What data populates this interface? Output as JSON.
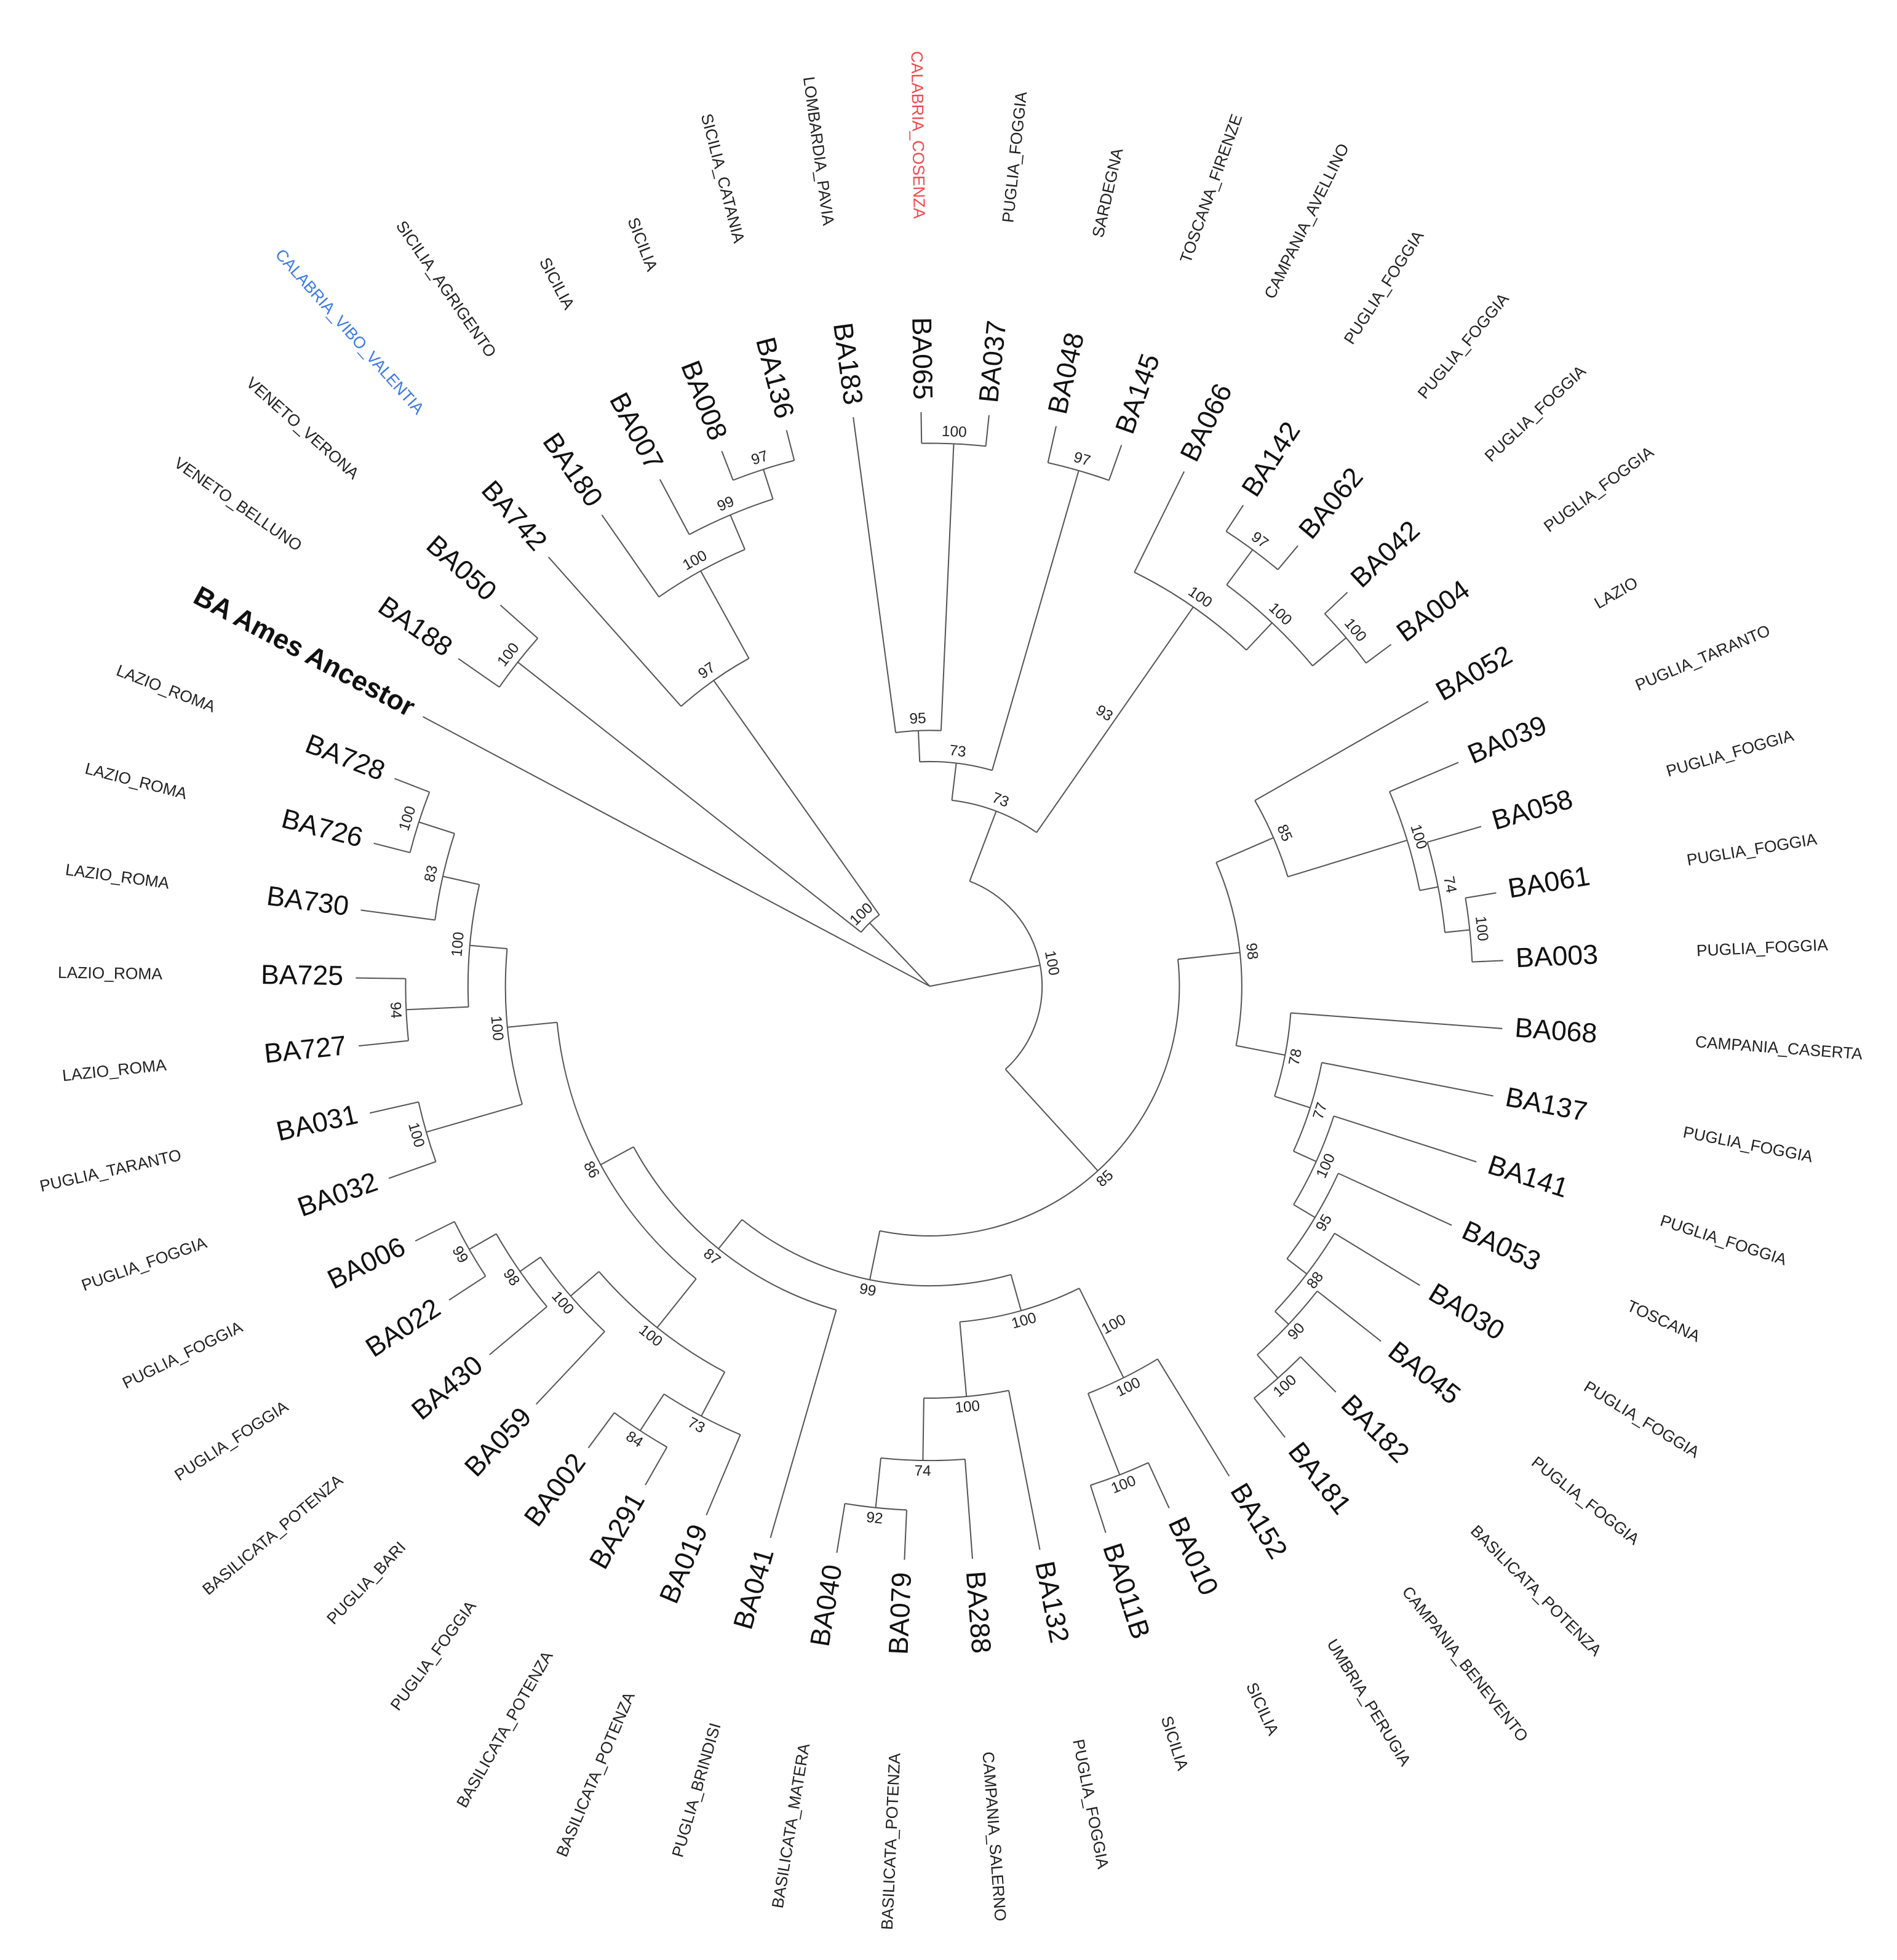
{
  "leaves": [
    {
      "id": "BA Ames Ancestor",
      "bold": true
    },
    {
      "id": "BA188",
      "region": "VENETO_BELLUNO"
    },
    {
      "id": "BA050",
      "region": "VENETO_VERONA"
    },
    {
      "id": "BA742",
      "region": "CALABRIA_VIBO_VALENTIA",
      "region_color": "#3b78e7"
    },
    {
      "id": "BA180",
      "region": "SICILIA_AGRIGENTO"
    },
    {
      "id": "BA007",
      "region": "SICILIA"
    },
    {
      "id": "BA008",
      "region": "SICILIA"
    },
    {
      "id": "BA136",
      "region": "SICILIA_CATANIA"
    },
    {
      "id": "BA183",
      "region": "LOMBARDIA_PAVIA"
    },
    {
      "id": "BA065",
      "region": "CALABRIA_COSENZA",
      "region_color": "#f0484a"
    },
    {
      "id": "BA037",
      "region": "PUGLIA_FOGGIA"
    },
    {
      "id": "BA048",
      "region": "SARDEGNA"
    },
    {
      "id": "BA145",
      "region": "TOSCANA_FIRENZE"
    },
    {
      "id": "BA066",
      "region": "CAMPANIA_AVELLINO"
    },
    {
      "id": "BA142",
      "region": "PUGLIA_FOGGIA"
    },
    {
      "id": "BA062",
      "region": "PUGLIA_FOGGIA"
    },
    {
      "id": "BA042",
      "region": "PUGLIA_FOGGIA"
    },
    {
      "id": "BA004",
      "region": "PUGLIA_FOGGIA"
    },
    {
      "id": "BA052",
      "region": "LAZIO"
    },
    {
      "id": "BA039",
      "region": "PUGLIA_TARANTO"
    },
    {
      "id": "BA058",
      "region": "PUGLIA_FOGGIA"
    },
    {
      "id": "BA061",
      "region": "PUGLIA_FOGGIA"
    },
    {
      "id": "BA003",
      "region": "PUGLIA_FOGGIA"
    },
    {
      "id": "BA068",
      "region": "CAMPANIA_CASERTA"
    },
    {
      "id": "BA137",
      "region": "PUGLIA_FOGGIA"
    },
    {
      "id": "BA141",
      "region": "PUGLIA_FOGGIA"
    },
    {
      "id": "BA053",
      "region": "TOSCANA"
    },
    {
      "id": "BA030",
      "region": "PUGLIA_FOGGIA"
    },
    {
      "id": "BA045",
      "region": "PUGLIA_FOGGIA"
    },
    {
      "id": "BA182",
      "region": "BASILICATA_POTENZA"
    },
    {
      "id": "BA181",
      "region": "CAMPANIA_BENEVENTO"
    },
    {
      "id": "BA152",
      "region": "UMBRIA_PERUGIA"
    },
    {
      "id": "BA010",
      "region": "SICILIA"
    },
    {
      "id": "BA011B",
      "region": "SICILIA"
    },
    {
      "id": "BA132",
      "region": "PUGLIA_FOGGIA"
    },
    {
      "id": "BA288",
      "region": "CAMPANIA_SALERNO"
    },
    {
      "id": "BA079",
      "region": "BASILICATA_POTENZA"
    },
    {
      "id": "BA040",
      "region": "BASILICATA_MATERA"
    },
    {
      "id": "BA041",
      "region": "PUGLIA_BRINDISI"
    },
    {
      "id": "BA019",
      "region": "BASILICATA_POTENZA"
    },
    {
      "id": "BA291",
      "region": "BASILICATA_POTENZA"
    },
    {
      "id": "BA002",
      "region": "PUGLIA_FOGGIA"
    },
    {
      "id": "BA059",
      "region": "PUGLIA_BARI"
    },
    {
      "id": "BA430",
      "region": "BASILICATA_POTENZA"
    },
    {
      "id": "BA022",
      "region": "PUGLIA_FOGGIA"
    },
    {
      "id": "BA006",
      "region": "PUGLIA_FOGGIA"
    },
    {
      "id": "BA032",
      "region": "PUGLIA_FOGGIA"
    },
    {
      "id": "BA031",
      "region": "PUGLIA_TARANTO"
    },
    {
      "id": "BA727",
      "region": "LAZIO_ROMA"
    },
    {
      "id": "BA725",
      "region": "LAZIO_ROMA"
    },
    {
      "id": "BA730",
      "region": "LAZIO_ROMA"
    },
    {
      "id": "BA726",
      "region": "LAZIO_ROMA"
    },
    {
      "id": "BA728",
      "region": "LAZIO_ROMA"
    }
  ],
  "bootstrap_values": [
    100,
    97,
    100,
    99,
    97,
    100,
    95,
    100,
    97,
    73,
    93,
    100,
    100,
    97,
    100,
    73,
    85,
    100,
    74,
    100,
    78,
    77,
    100,
    95,
    88,
    90,
    100,
    98,
    100,
    100,
    100,
    100,
    74,
    92,
    100,
    100,
    83,
    94,
    100,
    100,
    100,
    99,
    98,
    100,
    84,
    73,
    100,
    86,
    87,
    99,
    85,
    100
  ]
}
